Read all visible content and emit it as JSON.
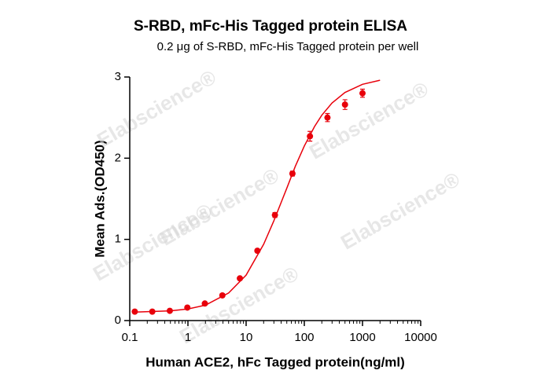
{
  "chart_data": {
    "type": "scatter",
    "title": "S-RBD,  mFc-His Tagged protein ELISA",
    "subtitle": "0.2 μg of S-RBD, mFc-His Tagged protein per well",
    "x_label": "Human ACE2, hFc Tagged protein(ng/ml)",
    "y_label": "Mean Ads.(OD450)",
    "watermark": "Elabscience®",
    "x_scale": "log",
    "xlim": [
      0.1,
      10000
    ],
    "xticks": [
      0.1,
      1,
      10,
      100,
      1000,
      10000
    ],
    "ylim": [
      0,
      3
    ],
    "yticks": [
      0,
      1,
      2,
      3
    ],
    "color": "#e8000b",
    "x": [
      0.122,
      0.244,
      0.488,
      0.977,
      1.953,
      3.906,
      7.8125,
      15.625,
      31.25,
      62.5,
      125,
      250,
      500,
      1000
    ],
    "values": [
      0.11,
      0.11,
      0.12,
      0.16,
      0.21,
      0.31,
      0.52,
      0.86,
      1.3,
      1.81,
      2.27,
      2.5,
      2.66,
      2.8
    ],
    "errors": [
      0.01,
      0.01,
      0.01,
      0.01,
      0.01,
      0.02,
      0.02,
      0.02,
      0.03,
      0.03,
      0.06,
      0.05,
      0.06,
      0.05
    ],
    "fit": {
      "x": [
        0.12,
        0.5,
        1,
        2,
        5,
        10,
        20,
        30,
        50,
        70,
        100,
        150,
        200,
        300,
        500,
        1000,
        2000
      ],
      "values": [
        0.104,
        0.12,
        0.143,
        0.19,
        0.34,
        0.56,
        0.94,
        1.23,
        1.63,
        1.9,
        2.15,
        2.39,
        2.53,
        2.68,
        2.81,
        2.91,
        2.96
      ]
    }
  }
}
